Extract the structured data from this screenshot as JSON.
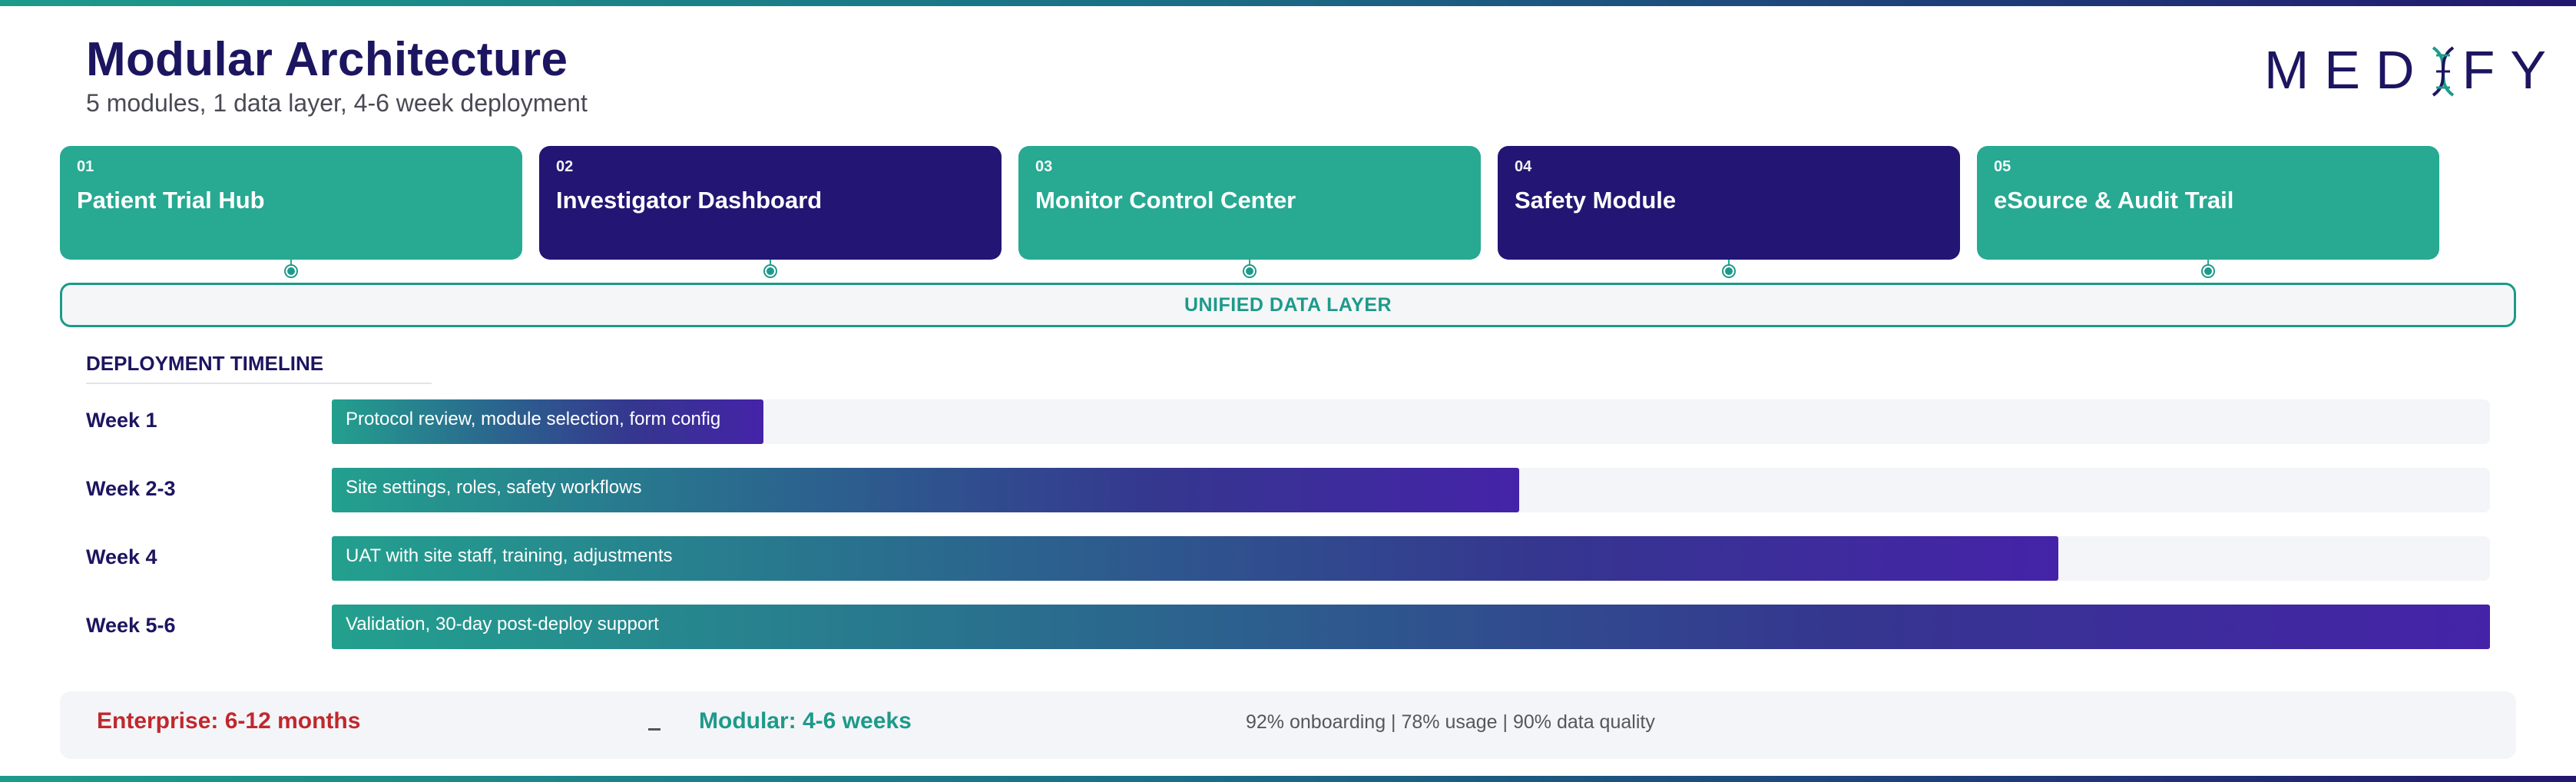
{
  "header": {
    "title": "Modular Architecture",
    "subtitle": "5 modules, 1 data layer, 4-6 week deployment",
    "logo_text": "MEDIFY"
  },
  "colors": {
    "teal": "#27a992",
    "navy": "#231573",
    "red": "#c0282d"
  },
  "modules": [
    {
      "num": "01",
      "name": "Patient Trial Hub",
      "color": "teal"
    },
    {
      "num": "02",
      "name": "Investigator Dashboard",
      "color": "navy"
    },
    {
      "num": "03",
      "name": "Monitor Control Center",
      "color": "teal"
    },
    {
      "num": "04",
      "name": "Safety Module",
      "color": "navy"
    },
    {
      "num": "05",
      "name": "eSource & Audit Trail",
      "color": "teal"
    }
  ],
  "data_layer": {
    "label": "UNIFIED DATA LAYER"
  },
  "timeline": {
    "heading": "DEPLOYMENT TIMELINE",
    "rows": [
      {
        "label": "Week 1",
        "text": "Protocol review, module selection, form config",
        "fill": 0.2
      },
      {
        "label": "Week 2-3",
        "text": "Site settings, roles, safety workflows",
        "fill": 0.55
      },
      {
        "label": "Week 4",
        "text": "UAT with site staff, training, adjustments",
        "fill": 0.8
      },
      {
        "label": "Week 5-6",
        "text": "Validation, 30-day post-deploy support",
        "fill": 1.0
      }
    ]
  },
  "comparison": {
    "enterprise": "Enterprise: 6-12 months",
    "arrow": "→",
    "modular": "Modular: 4-6 weeks",
    "stats": "92% onboarding  |  78% usage  |  90% data quality"
  }
}
